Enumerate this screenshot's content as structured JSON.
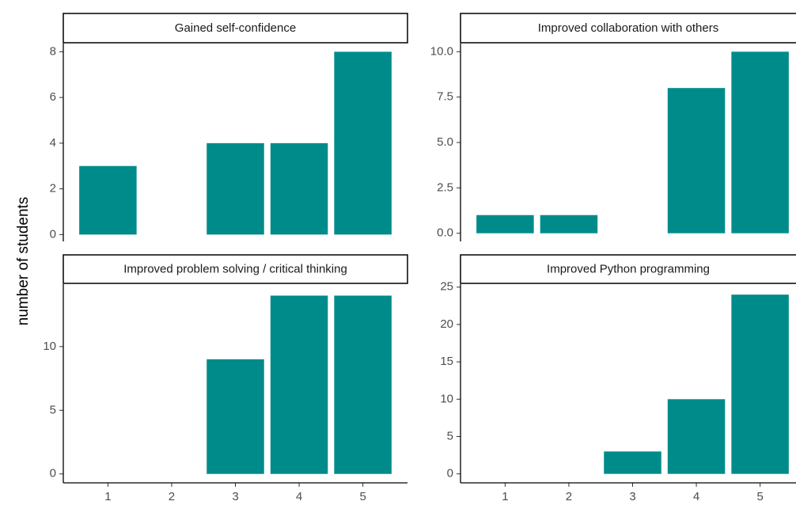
{
  "ylabel": "number of students",
  "chart_data": [
    {
      "type": "bar",
      "title": "Gained self-confidence",
      "categories": [
        "1",
        "2",
        "3",
        "4",
        "5"
      ],
      "values": [
        3,
        0,
        4,
        4,
        8
      ],
      "color": "#008b8b",
      "ylim": [
        -0.3,
        8.36
      ],
      "yticks": [
        0,
        2,
        4,
        6,
        8
      ]
    },
    {
      "type": "bar",
      "title": "Improved collaboration with others",
      "categories": [
        "1",
        "2",
        "3",
        "4",
        "5"
      ],
      "values": [
        1,
        1,
        0,
        8,
        10
      ],
      "color": "#008b8b",
      "ylim": [
        -0.45,
        10.45
      ],
      "yticks": [
        {
          "value": 0,
          "label": "0.0"
        },
        {
          "value": 2.5,
          "label": "2.5"
        },
        {
          "value": 5,
          "label": "5.0"
        },
        {
          "value": 7.5,
          "label": "7.5"
        },
        {
          "value": 10,
          "label": "10.0"
        }
      ]
    },
    {
      "type": "bar",
      "title": "Improved problem solving / critical thinking",
      "categories": [
        "1",
        "2",
        "3",
        "4",
        "5"
      ],
      "values": [
        0,
        0,
        9,
        14,
        14
      ],
      "color": "#008b8b",
      "ylim": [
        -0.7,
        14.9
      ],
      "yticks": [
        0,
        5,
        10
      ]
    },
    {
      "type": "bar",
      "title": "Improved Python programming",
      "categories": [
        "1",
        "2",
        "3",
        "4",
        "5"
      ],
      "values": [
        0,
        0,
        3,
        10,
        24
      ],
      "color": "#008b8b",
      "ylim": [
        -1.2,
        25.4
      ],
      "yticks": [
        0,
        5,
        10,
        15,
        20,
        25
      ]
    }
  ]
}
